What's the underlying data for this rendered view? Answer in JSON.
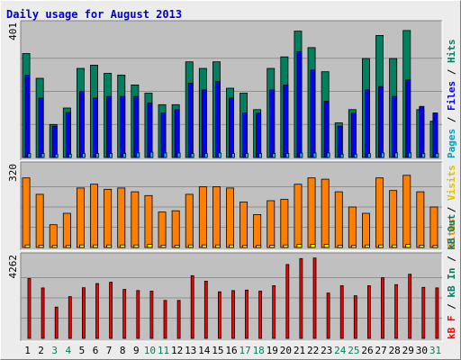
{
  "chart_data": {
    "type": "bar",
    "title": "Daily usage for August 2013",
    "categories": [
      "1",
      "2",
      "3",
      "4",
      "5",
      "6",
      "7",
      "8",
      "9",
      "10",
      "11",
      "12",
      "13",
      "14",
      "15",
      "16",
      "17",
      "18",
      "19",
      "20",
      "21",
      "22",
      "23",
      "24",
      "25",
      "26",
      "27",
      "28",
      "29",
      "30",
      "31"
    ],
    "weekend_days": [
      "3",
      "4",
      "10",
      "11",
      "17",
      "18",
      "24",
      "25",
      "31"
    ],
    "panels": [
      {
        "name": "top",
        "ymax": 401,
        "ymax_label": "401",
        "side_label": [
          "Pages",
          "Files",
          "Hits"
        ],
        "series": [
          {
            "name": "Hits",
            "color": "#008060",
            "values": [
              315,
              240,
              100,
              150,
              270,
              280,
              255,
              250,
              220,
              195,
              160,
              160,
              290,
              270,
              290,
              210,
              195,
              145,
              270,
              305,
              383,
              333,
              260,
              105,
              145,
              300,
              370,
              300,
              385,
              145,
              110
            ]
          },
          {
            "name": "Files",
            "color": "#0000ff",
            "values": [
              250,
              180,
              95,
              136,
              200,
              180,
              185,
              185,
              185,
              165,
              135,
              145,
              225,
              205,
              230,
              180,
              135,
              135,
              205,
              220,
              321,
              265,
              170,
              95,
              135,
              205,
              215,
              185,
              235,
              155,
              135
            ]
          },
          {
            "name": "Pages",
            "color": "#00c0ff",
            "values": [
              12,
              12,
              10,
              10,
              12,
              12,
              12,
              12,
              14,
              16,
              14,
              14,
              12,
              12,
              14,
              12,
              12,
              12,
              12,
              12,
              14,
              14,
              14,
              10,
              10,
              12,
              14,
              14,
              14,
              12,
              12
            ]
          }
        ]
      },
      {
        "name": "middle",
        "ymax": 320,
        "ymax_label": "320",
        "side_label": [
          "Sites",
          "Visits"
        ],
        "series": [
          {
            "name": "Visits",
            "color": "#ff8000",
            "values": [
              275,
              210,
              90,
              135,
              235,
              250,
              230,
              235,
              220,
              205,
              140,
              145,
              210,
              240,
              240,
              235,
              180,
              130,
              185,
              190,
              250,
              275,
              270,
              220,
              160,
              135,
              275,
              225,
              285,
              220,
              160
            ]
          },
          {
            "name": "Sites",
            "color": "#ffff00",
            "values": [
              10,
              9,
              8,
              8,
              10,
              10,
              10,
              10,
              10,
              12,
              9,
              9,
              10,
              10,
              10,
              10,
              8,
              8,
              9,
              10,
              12,
              12,
              12,
              9,
              8,
              10,
              10,
              10,
              12,
              9,
              8
            ]
          }
        ]
      },
      {
        "name": "bottom",
        "ymax": 4262,
        "ymax_label": "4262",
        "side_label": [
          "kB F",
          "kB In",
          "kB Out"
        ],
        "series": [
          {
            "name": "kB Out",
            "color": "#008060",
            "values": [
              0,
              0,
              0,
              0,
              0,
              0,
              0,
              0,
              0,
              0,
              0,
              0,
              0,
              0,
              0,
              0,
              0,
              0,
              0,
              0,
              0,
              0,
              0,
              0,
              0,
              0,
              0,
              0,
              0,
              0,
              0
            ]
          },
          {
            "name": "kB In",
            "color": "#008060",
            "values": [
              0,
              0,
              0,
              0,
              0,
              0,
              0,
              0,
              0,
              0,
              0,
              0,
              0,
              0,
              0,
              0,
              0,
              0,
              0,
              0,
              0,
              0,
              0,
              0,
              0,
              0,
              0,
              0,
              0,
              0,
              0
            ]
          },
          {
            "name": "kB F",
            "color": "#ff0000",
            "values": [
              3150,
              2655,
              1650,
              2195,
              2665,
              2885,
              2955,
              2575,
              2520,
              2485,
              2000,
              2000,
              3300,
              3010,
              2455,
              2515,
              2545,
              2485,
              2770,
              3890,
              4200,
              4230,
              2385,
              2770,
              2245,
              2770,
              3190,
              2825,
              3375,
              2685,
              2655
            ]
          }
        ]
      }
    ],
    "colors": {
      "title": "#0000c8",
      "plot_bg": "#c0c0c0",
      "frame_bg": "#ececec",
      "weekday_label": "#000000",
      "weekend_label": "#008060"
    }
  }
}
